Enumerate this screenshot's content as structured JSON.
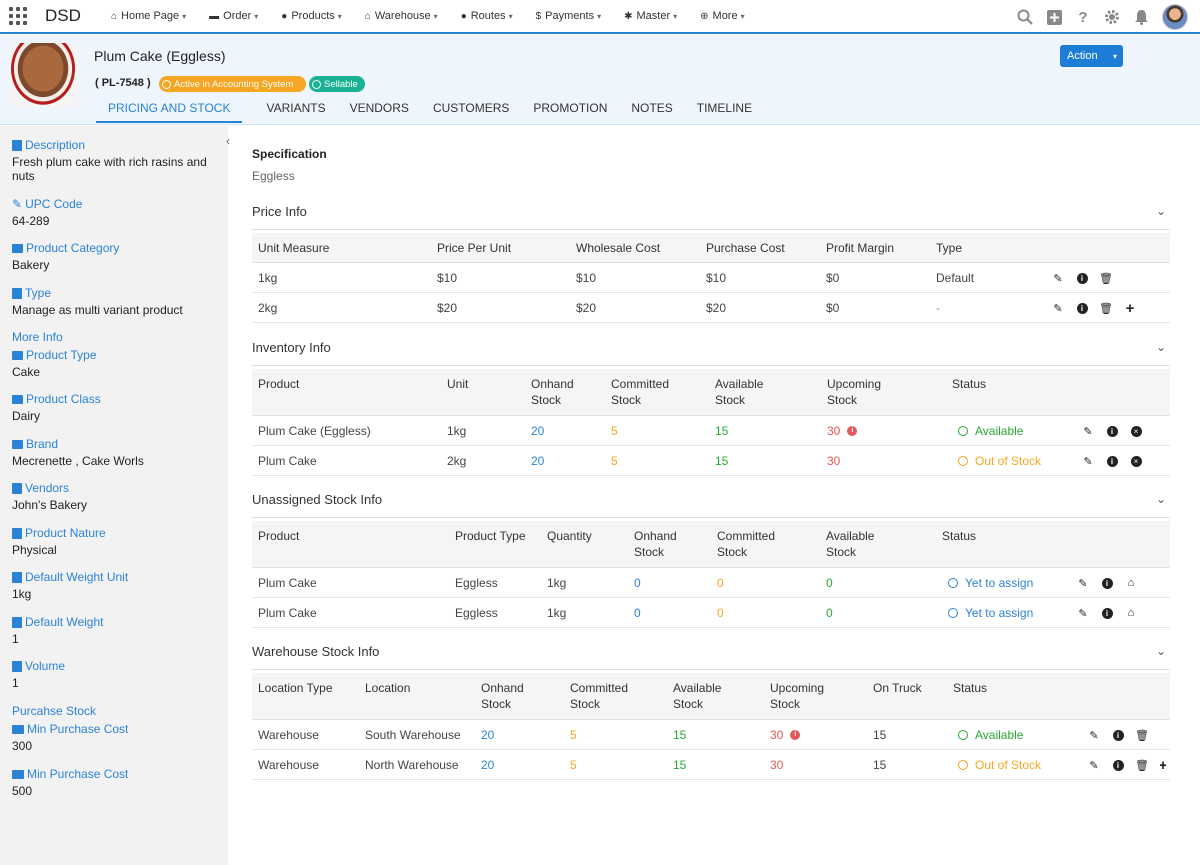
{
  "app": {
    "brand": "DSD"
  },
  "nav": {
    "items": [
      {
        "label": "Home Page",
        "icon": "home-icon"
      },
      {
        "label": "Order",
        "icon": "cart-icon"
      },
      {
        "label": "Products",
        "icon": "products-icon"
      },
      {
        "label": "Warehouse",
        "icon": "warehouse-icon"
      },
      {
        "label": "Routes",
        "icon": "pin-icon"
      },
      {
        "label": "Payments",
        "icon": "dollar-icon"
      },
      {
        "label": "Master",
        "icon": "gear-icon"
      },
      {
        "label": "More",
        "icon": "plus-circle-icon"
      }
    ]
  },
  "product": {
    "title": "Plum Cake (Eggless)",
    "code": "( PL-7548 )",
    "badge_accounting": "Active in Accounting System",
    "badge_sellable": "Sellable",
    "action_label": "Action"
  },
  "tabs": [
    "PRICING AND STOCK",
    "VARIANTS",
    "VENDORS",
    "CUSTOMERS",
    "PROMOTION",
    "NOTES",
    "TIMELINE"
  ],
  "sidebar": {
    "description": {
      "label": "Description",
      "value": "Fresh plum cake with rich rasins and nuts"
    },
    "upc": {
      "label": "UPC Code",
      "value": "64-289"
    },
    "category": {
      "label": "Product Category",
      "value": "Bakery"
    },
    "type": {
      "label": "Type",
      "value": "Manage as multi variant product"
    },
    "more_info": "More Info",
    "product_type": {
      "label": "Product Type",
      "value": "Cake"
    },
    "product_class": {
      "label": "Product Class",
      "value": "Dairy"
    },
    "brand": {
      "label": "Brand",
      "value": "Mecrenette , Cake Worls"
    },
    "vendors": {
      "label": "Vendors",
      "value": "John's Bakery"
    },
    "nature": {
      "label": "Product Nature",
      "value": "Physical"
    },
    "weight_unit": {
      "label": "Default Weight Unit",
      "value": "1kg"
    },
    "weight": {
      "label": "Default Weight",
      "value": "1"
    },
    "volume": {
      "label": "Volume",
      "value": "1"
    },
    "purchase_stock": "Purcahse Stock",
    "min_cost_1": {
      "label": "Min Purchase Cost",
      "value": "300"
    },
    "min_cost_2": {
      "label": "Min Purchase Cost",
      "value": "500"
    }
  },
  "spec": {
    "title": "Specification",
    "value": "Eggless"
  },
  "price": {
    "title": "Price Info",
    "headers": [
      "Unit Measure",
      "Price Per Unit",
      "Wholesale Cost",
      "Purchase Cost",
      "Profit Margin",
      "Type"
    ],
    "rows": [
      [
        "1kg",
        "$10",
        "$10",
        "$10",
        "$0",
        "Default"
      ],
      [
        "2kg",
        "$20",
        "$20",
        "$20",
        "$0",
        "-"
      ]
    ]
  },
  "inventory": {
    "title": "Inventory Info",
    "headers": [
      "Product",
      "Unit",
      "Onhand\nStock",
      "Committed\nStock",
      "Available\nStock",
      "Upcoming\nStock",
      "Status"
    ],
    "rows": [
      [
        "Plum Cake (Eggless)",
        "1kg",
        "20",
        "5",
        "15",
        "30",
        "Available"
      ],
      [
        "Plum Cake",
        "2kg",
        "20",
        "5",
        "15",
        "30",
        "Out of Stock"
      ]
    ]
  },
  "unassigned": {
    "title": "Unassigned Stock Info",
    "headers": [
      "Product",
      "Product Type",
      "Quantity",
      "Onhand\nStock",
      "Committed\nStock",
      "Available\nStock",
      "Status"
    ],
    "rows": [
      [
        "Plum Cake",
        "Eggless",
        "1kg",
        "0",
        "0",
        "0",
        "Yet to assign"
      ],
      [
        "Plum Cake",
        "Eggless",
        "1kg",
        "0",
        "0",
        "0",
        "Yet to assign"
      ]
    ]
  },
  "warehouse": {
    "title": "Warehouse Stock Info",
    "headers": [
      "Location Type",
      "Location",
      "Onhand\nStock",
      "Committed\nStock",
      "Available\nStock",
      "Upcoming\nStock",
      "On Truck",
      "Status"
    ],
    "rows": [
      [
        "Warehouse",
        "South Warehouse",
        "20",
        "5",
        "15",
        "30",
        "15",
        "Available"
      ],
      [
        "Warehouse",
        "North Warehouse",
        "20",
        "5",
        "15",
        "30",
        "15",
        "Out of Stock"
      ]
    ]
  },
  "colors": {
    "accent": "#2b83d6",
    "available": "#2aa836",
    "out": "#f5a623",
    "upcoming": "#e05a5a"
  }
}
